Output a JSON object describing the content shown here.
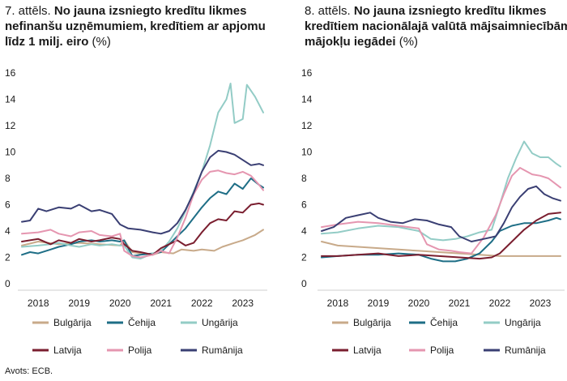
{
  "source": "Avots: ECB.",
  "colors": {
    "bulgarija": "#c8aa8a",
    "cehija": "#1e6e86",
    "ungarija": "#93ccc6",
    "latvija": "#7a1e2f",
    "polija": "#e596b0",
    "rumanija": "#3a3f73"
  },
  "chart_data": [
    {
      "type": "line",
      "title_prefix": "7. attēls.",
      "title_bold": "No jauna izsniegto kredītu likmes nefinanšu uzņēmumiem, kredītiem ar apjomu līdz 1 milj. eiro",
      "title_unit": "(%)",
      "ylim": [
        0,
        16
      ],
      "yticks": [
        0,
        2,
        4,
        6,
        8,
        10,
        12,
        14,
        16
      ],
      "xlim": [
        2017.5,
        2023.6
      ],
      "xticks": [
        2018,
        2019,
        2020,
        2021,
        2022,
        2023
      ],
      "series": [
        {
          "name": "Bulgārija",
          "key": "bulgarija",
          "x": [
            2017.6,
            2018.0,
            2018.5,
            2019.0,
            2019.5,
            2020.0,
            2020.1,
            2020.3,
            2020.5,
            2020.8,
            2021.0,
            2021.3,
            2021.5,
            2021.8,
            2022.0,
            2022.3,
            2022.5,
            2022.8,
            2023.0,
            2023.3,
            2023.5
          ],
          "y": [
            2.9,
            3.2,
            3.0,
            3.1,
            3.0,
            2.9,
            3.3,
            2.4,
            2.3,
            2.2,
            2.4,
            2.3,
            2.6,
            2.5,
            2.6,
            2.5,
            2.8,
            3.1,
            3.3,
            3.7,
            4.1
          ]
        },
        {
          "name": "Čehija",
          "key": "cehija",
          "x": [
            2017.6,
            2017.8,
            2018.0,
            2018.3,
            2018.5,
            2018.8,
            2019.0,
            2019.3,
            2019.5,
            2019.8,
            2020.0,
            2020.1,
            2020.3,
            2020.5,
            2020.8,
            2021.0,
            2021.2,
            2021.4,
            2021.6,
            2021.8,
            2022.0,
            2022.2,
            2022.4,
            2022.6,
            2022.8,
            2023.0,
            2023.2,
            2023.4,
            2023.5
          ],
          "y": [
            2.2,
            2.4,
            2.3,
            2.6,
            2.8,
            3.0,
            3.2,
            3.3,
            3.2,
            3.3,
            3.2,
            3.3,
            2.1,
            2.2,
            2.3,
            2.4,
            3.0,
            3.6,
            4.2,
            5.0,
            5.8,
            6.5,
            7.0,
            6.8,
            7.6,
            7.2,
            8.0,
            7.5,
            7.3
          ]
        },
        {
          "name": "Ungārija",
          "key": "ungarija",
          "x": [
            2017.6,
            2018.0,
            2018.3,
            2018.5,
            2018.8,
            2019.0,
            2019.3,
            2019.5,
            2019.8,
            2020.0,
            2020.1,
            2020.3,
            2020.5,
            2020.8,
            2021.0,
            2021.2,
            2021.4,
            2021.6,
            2021.8,
            2022.0,
            2022.2,
            2022.4,
            2022.6,
            2022.7,
            2022.8,
            2023.0,
            2023.1,
            2023.3,
            2023.5
          ],
          "y": [
            2.8,
            2.9,
            3.0,
            3.1,
            2.9,
            2.8,
            3.0,
            2.9,
            3.0,
            2.9,
            2.9,
            2.0,
            1.9,
            2.3,
            2.5,
            3.2,
            4.2,
            5.5,
            7.0,
            8.5,
            10.5,
            13.0,
            14.0,
            15.2,
            12.2,
            12.5,
            15.1,
            14.2,
            13.0
          ]
        },
        {
          "name": "Latvija",
          "key": "latvija",
          "x": [
            2017.6,
            2018.0,
            2018.3,
            2018.5,
            2018.8,
            2019.0,
            2019.3,
            2019.5,
            2019.8,
            2020.0,
            2020.1,
            2020.3,
            2020.5,
            2020.8,
            2021.0,
            2021.2,
            2021.4,
            2021.6,
            2021.8,
            2022.0,
            2022.2,
            2022.4,
            2022.6,
            2022.8,
            2023.0,
            2023.2,
            2023.4,
            2023.5
          ],
          "y": [
            3.2,
            3.4,
            3.0,
            3.3,
            3.1,
            3.4,
            3.2,
            3.3,
            3.5,
            3.4,
            3.0,
            2.5,
            2.4,
            2.2,
            2.7,
            3.0,
            3.3,
            2.9,
            3.1,
            3.9,
            4.6,
            4.9,
            4.8,
            5.5,
            5.4,
            6.0,
            6.1,
            6.0
          ]
        },
        {
          "name": "Polija",
          "key": "polija",
          "x": [
            2017.6,
            2018.0,
            2018.3,
            2018.5,
            2018.8,
            2019.0,
            2019.3,
            2019.5,
            2019.8,
            2020.0,
            2020.1,
            2020.3,
            2020.5,
            2020.8,
            2021.0,
            2021.2,
            2021.4,
            2021.6,
            2021.8,
            2022.0,
            2022.2,
            2022.4,
            2022.6,
            2022.8,
            2023.0,
            2023.2,
            2023.4,
            2023.5
          ],
          "y": [
            3.8,
            3.9,
            4.1,
            3.8,
            3.6,
            3.9,
            4.0,
            3.7,
            3.6,
            3.8,
            2.5,
            2.1,
            2.0,
            2.2,
            2.5,
            2.3,
            3.5,
            5.0,
            6.8,
            7.9,
            8.5,
            8.6,
            8.4,
            8.3,
            8.5,
            8.2,
            7.5,
            7.1
          ]
        },
        {
          "name": "Rumānija",
          "key": "rumanija",
          "x": [
            2017.6,
            2017.8,
            2018.0,
            2018.2,
            2018.5,
            2018.8,
            2019.0,
            2019.3,
            2019.5,
            2019.8,
            2020.0,
            2020.2,
            2020.5,
            2020.8,
            2021.0,
            2021.2,
            2021.4,
            2021.6,
            2021.8,
            2022.0,
            2022.2,
            2022.4,
            2022.6,
            2022.8,
            2023.0,
            2023.2,
            2023.4,
            2023.5
          ],
          "y": [
            4.7,
            4.8,
            5.7,
            5.5,
            5.8,
            5.7,
            6.0,
            5.5,
            5.6,
            5.3,
            4.5,
            4.2,
            4.1,
            3.9,
            3.8,
            4.0,
            4.6,
            5.6,
            6.9,
            8.5,
            9.6,
            10.1,
            10.0,
            9.8,
            9.4,
            9.0,
            9.1,
            9.0
          ]
        }
      ]
    },
    {
      "type": "line",
      "title_prefix": "8. attēls.",
      "title_bold": "No jauna izsniegto kredītu likmes kredītiem nacionālajā valūtā mājsaimniecībām mājokļu iegādei",
      "title_unit": "(%)",
      "ylim": [
        0,
        16
      ],
      "yticks": [
        0,
        2,
        4,
        6,
        8,
        10,
        12,
        14,
        16
      ],
      "xlim": [
        2017.5,
        2023.6
      ],
      "xticks": [
        2018,
        2019,
        2020,
        2021,
        2022,
        2023
      ],
      "series": [
        {
          "name": "Bulgārija",
          "key": "bulgarija",
          "x": [
            2017.6,
            2018.0,
            2018.5,
            2019.0,
            2019.5,
            2020.0,
            2020.5,
            2021.0,
            2021.5,
            2022.0,
            2022.5,
            2023.0,
            2023.5
          ],
          "y": [
            3.2,
            2.9,
            2.8,
            2.7,
            2.6,
            2.5,
            2.4,
            2.3,
            2.2,
            2.1,
            2.1,
            2.1,
            2.1
          ]
        },
        {
          "name": "Čehija",
          "key": "cehija",
          "x": [
            2017.6,
            2018.0,
            2018.5,
            2019.0,
            2019.5,
            2020.0,
            2020.3,
            2020.6,
            2020.9,
            2021.2,
            2021.5,
            2021.8,
            2022.0,
            2022.3,
            2022.6,
            2022.9,
            2023.2,
            2023.4,
            2023.5
          ],
          "y": [
            2.0,
            2.1,
            2.2,
            2.2,
            2.3,
            2.2,
            1.9,
            1.7,
            1.7,
            1.9,
            2.3,
            3.2,
            4.0,
            4.4,
            4.6,
            4.6,
            4.8,
            5.0,
            4.9
          ]
        },
        {
          "name": "Ungārija",
          "key": "ungarija",
          "x": [
            2017.6,
            2018.0,
            2018.5,
            2019.0,
            2019.5,
            2020.0,
            2020.3,
            2020.6,
            2020.9,
            2021.2,
            2021.5,
            2021.8,
            2022.0,
            2022.2,
            2022.4,
            2022.6,
            2022.8,
            2023.0,
            2023.2,
            2023.4,
            2023.5
          ],
          "y": [
            3.8,
            3.9,
            4.2,
            4.4,
            4.3,
            4.0,
            3.4,
            3.3,
            3.4,
            3.6,
            3.9,
            4.1,
            6.0,
            8.0,
            9.5,
            10.8,
            9.9,
            9.6,
            9.6,
            9.1,
            8.9
          ]
        },
        {
          "name": "Latvija",
          "key": "latvija",
          "x": [
            2017.6,
            2018.0,
            2018.5,
            2019.0,
            2019.5,
            2020.0,
            2020.5,
            2021.0,
            2021.5,
            2021.8,
            2022.0,
            2022.3,
            2022.6,
            2022.9,
            2023.2,
            2023.5
          ],
          "y": [
            2.1,
            2.1,
            2.2,
            2.3,
            2.1,
            2.2,
            2.1,
            2.0,
            1.9,
            2.0,
            2.3,
            3.2,
            4.1,
            4.8,
            5.3,
            5.4
          ]
        },
        {
          "name": "Polija",
          "key": "polija",
          "x": [
            2017.6,
            2018.0,
            2018.5,
            2019.0,
            2019.5,
            2020.0,
            2020.2,
            2020.5,
            2020.8,
            2021.0,
            2021.3,
            2021.6,
            2021.9,
            2022.1,
            2022.3,
            2022.5,
            2022.8,
            2023.0,
            2023.2,
            2023.5
          ],
          "y": [
            4.3,
            4.5,
            4.7,
            4.6,
            4.4,
            4.2,
            3.0,
            2.6,
            2.5,
            2.4,
            2.3,
            3.5,
            5.2,
            6.8,
            8.2,
            8.8,
            8.3,
            8.2,
            8.0,
            7.3
          ]
        },
        {
          "name": "Rumānija",
          "key": "rumanija",
          "x": [
            2017.6,
            2017.9,
            2018.2,
            2018.5,
            2018.8,
            2019.0,
            2019.3,
            2019.6,
            2019.9,
            2020.2,
            2020.5,
            2020.8,
            2021.0,
            2021.3,
            2021.6,
            2021.9,
            2022.1,
            2022.3,
            2022.5,
            2022.7,
            2022.9,
            2023.1,
            2023.3,
            2023.5
          ],
          "y": [
            4.0,
            4.3,
            5.0,
            5.2,
            5.4,
            5.0,
            4.7,
            4.6,
            4.9,
            4.8,
            4.5,
            4.3,
            3.6,
            3.2,
            3.4,
            3.6,
            4.6,
            5.8,
            6.6,
            7.2,
            7.4,
            6.8,
            6.5,
            6.3
          ]
        }
      ]
    }
  ]
}
